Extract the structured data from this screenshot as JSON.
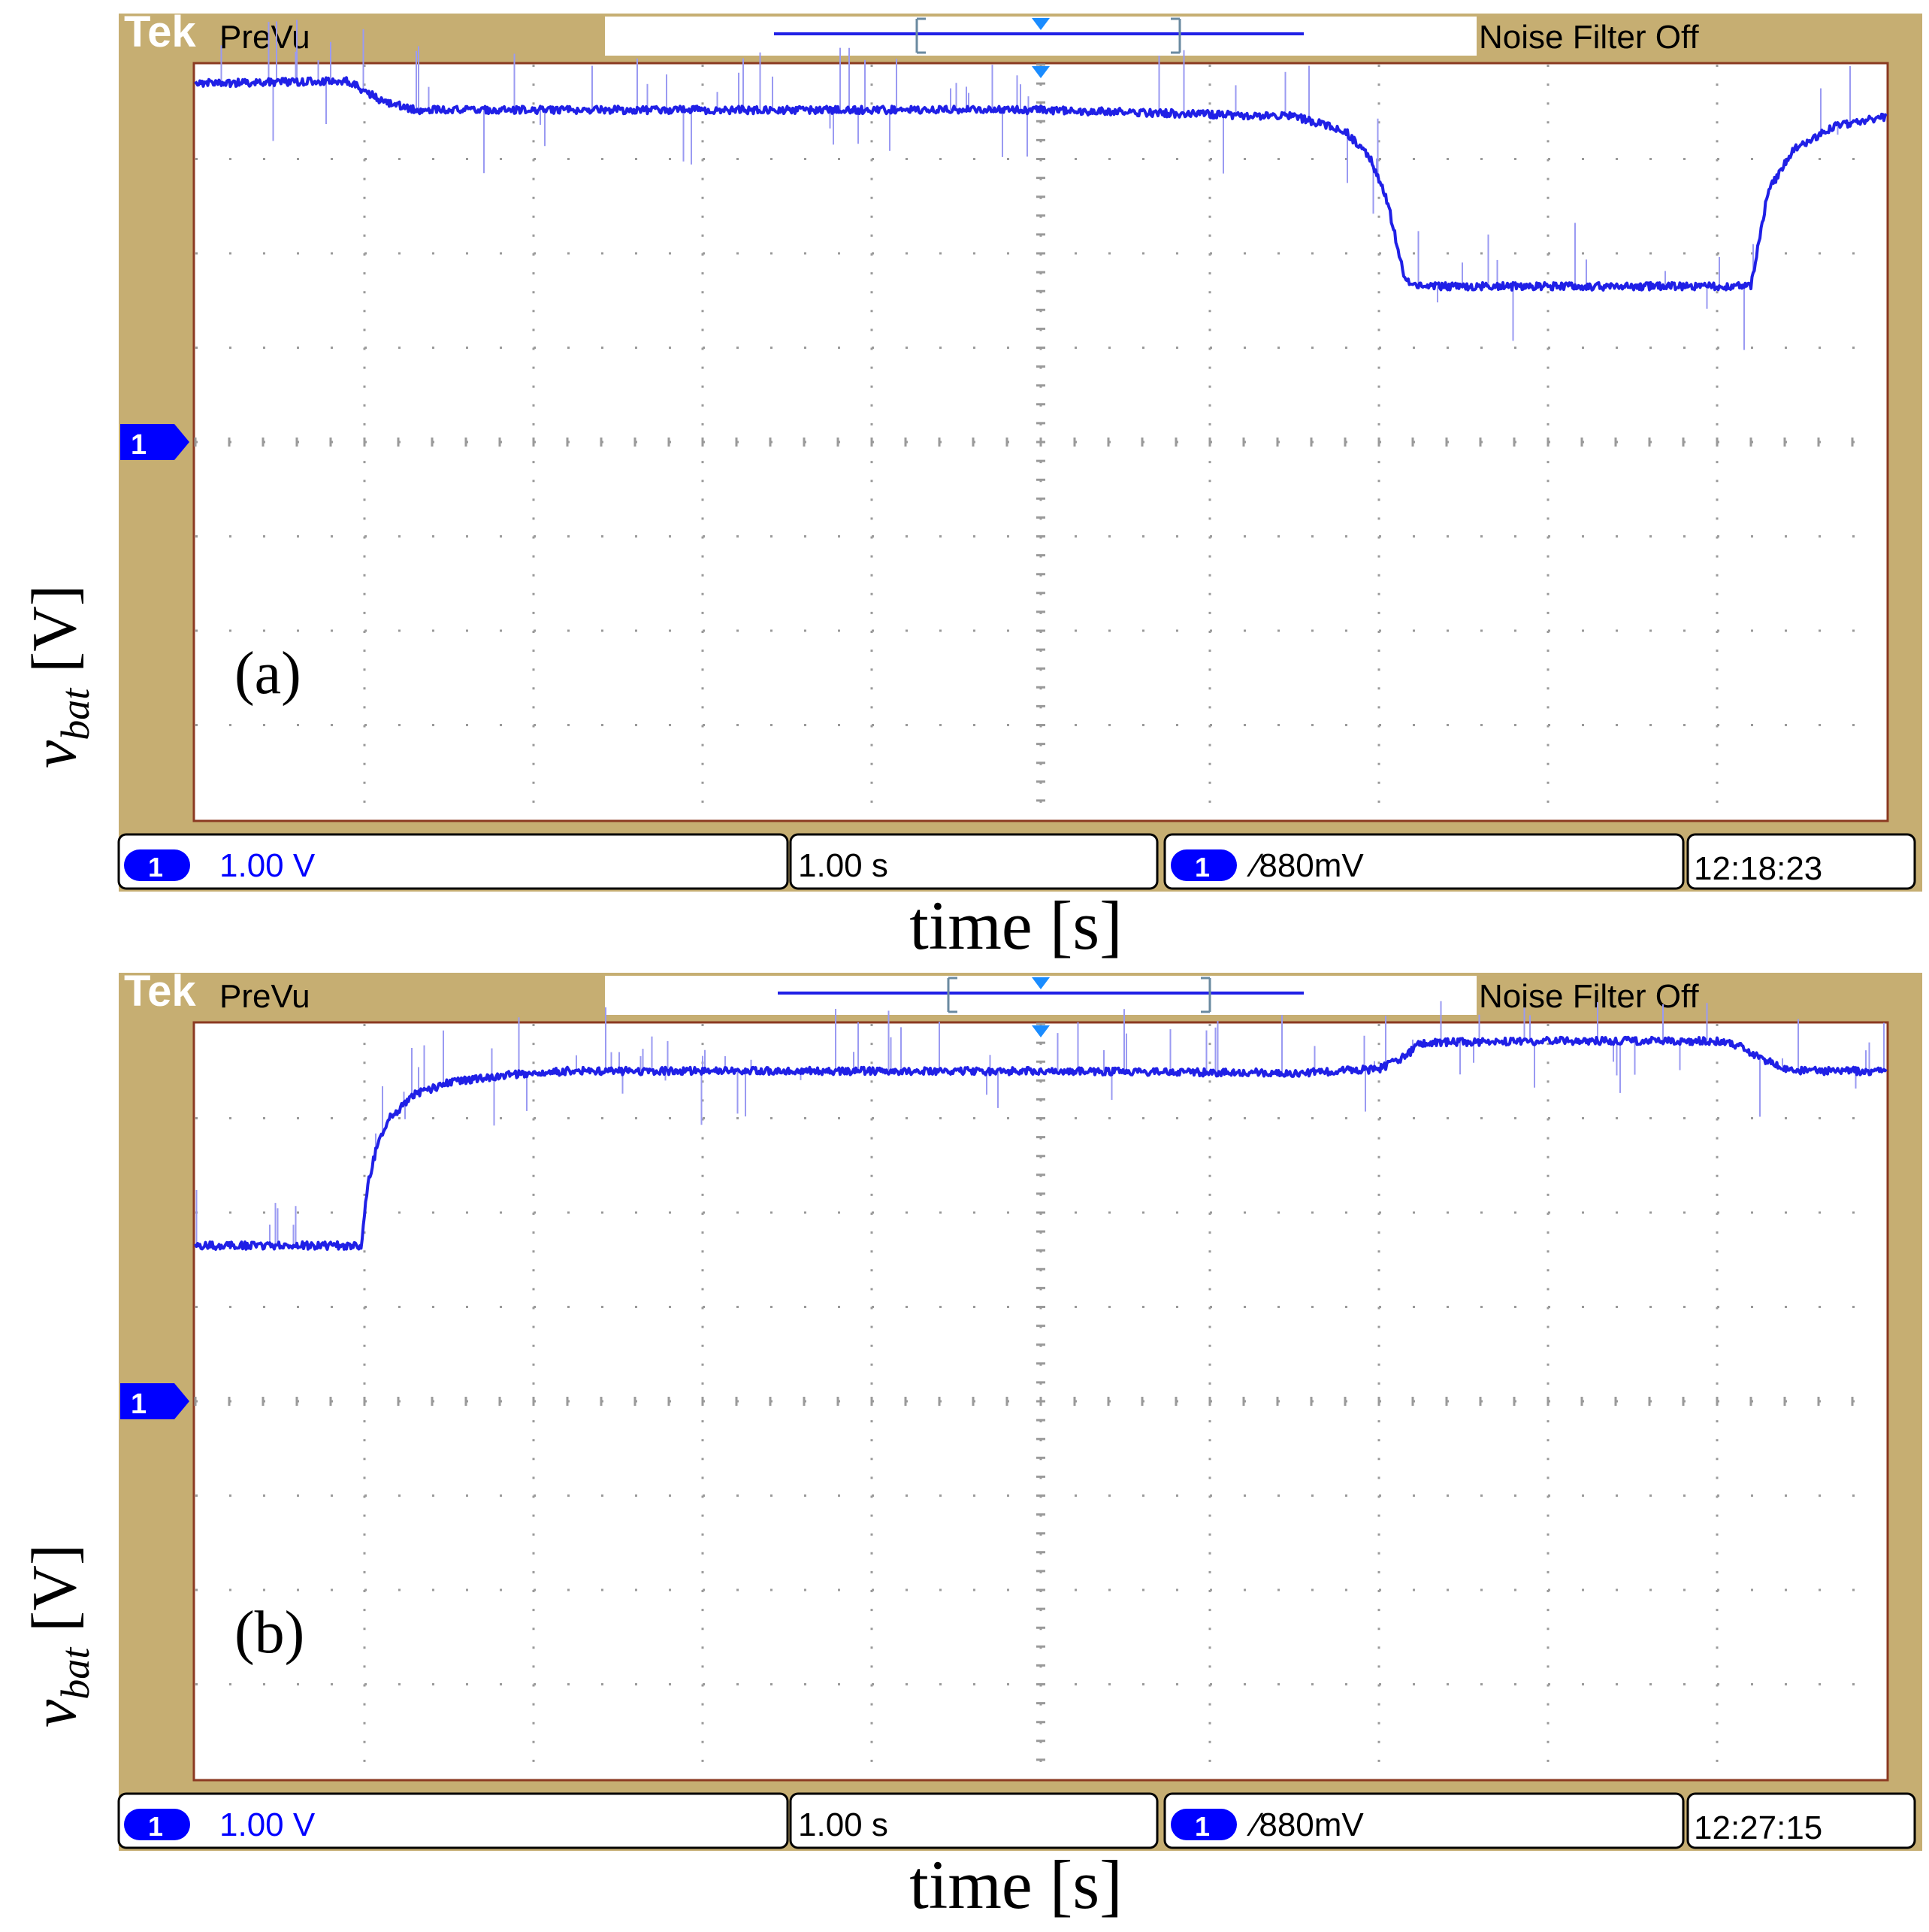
{
  "colors": {
    "bezel": "#c6ae72",
    "trace": "#2020e6",
    "trace_glitch": "#9a9af2",
    "grid": "#9a9a9a",
    "accent": "#0000ff",
    "trigger_marker": "#1a8cff",
    "frame": "#8b3a22"
  },
  "scopes": [
    {
      "id": "a",
      "brand": "Tek",
      "mode": "PreVu",
      "noise_filter": "Noise Filter Off",
      "channel_marker": "1",
      "panel_label": "(a)",
      "ylabel_var": "v",
      "ylabel_sub": "bat",
      "ylabel_unit": " [V]",
      "xlabel": "time [s]",
      "status": {
        "ch_badge": "1",
        "volts_div": "1.00 V",
        "time_div": "1.00 s",
        "trig_badge": "1",
        "trigger": "∕880mV",
        "clock": "12:18:23"
      }
    },
    {
      "id": "b",
      "brand": "Tek",
      "mode": "PreVu",
      "noise_filter": "Noise Filter Off",
      "channel_marker": "1",
      "panel_label": "(b)",
      "ylabel_var": "v",
      "ylabel_sub": "bat",
      "ylabel_unit": " [V]",
      "xlabel": "time [s]",
      "status": {
        "ch_badge": "1",
        "volts_div": "1.00 V",
        "time_div": "1.00 s",
        "trig_badge": "1",
        "trigger": "∕880mV",
        "clock": "12:27:15"
      }
    }
  ],
  "chart_data": [
    {
      "type": "line",
      "xlim": [
        0,
        10
      ],
      "ylim": [
        -4,
        4
      ],
      "grid": true,
      "series": [
        {
          "x": [
            0,
            0.9,
            1.0,
            1.1,
            1.3,
            3.0,
            5.0,
            6.5,
            6.8,
            6.95,
            7.05,
            7.15,
            7.2,
            7.5,
            8.5,
            9.0,
            9.2,
            9.25,
            9.3,
            9.45,
            9.7,
            10.0
          ],
          "y": [
            3.8,
            3.83,
            3.72,
            3.62,
            3.52,
            3.52,
            3.52,
            3.45,
            3.3,
            3.0,
            2.55,
            1.75,
            1.65,
            1.65,
            1.65,
            1.65,
            1.65,
            2.15,
            2.65,
            3.1,
            3.35,
            3.45
          ]
        }
      ]
    },
    {
      "type": "line",
      "xlim": [
        0,
        10
      ],
      "ylim": [
        -4,
        4
      ],
      "grid": true,
      "series": [
        {
          "x": [
            0,
            0.98,
            1.02,
            1.08,
            1.15,
            1.3,
            1.5,
            1.8,
            2.2,
            3.0,
            5.0,
            6.5,
            7.0,
            7.15,
            7.25,
            8.0,
            9.0,
            9.15,
            9.3,
            9.45,
            10.0
          ],
          "y": [
            1.65,
            1.65,
            2.3,
            2.75,
            3.0,
            3.25,
            3.38,
            3.45,
            3.5,
            3.5,
            3.5,
            3.48,
            3.52,
            3.65,
            3.8,
            3.82,
            3.82,
            3.75,
            3.6,
            3.5,
            3.5
          ]
        }
      ]
    }
  ]
}
